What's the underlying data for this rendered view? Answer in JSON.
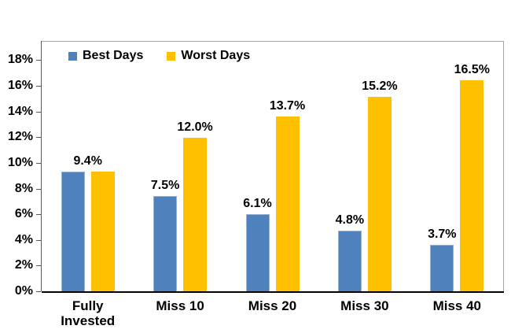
{
  "chart_data": {
    "type": "bar",
    "title": "",
    "xlabel": "",
    "ylabel": "",
    "categories": [
      "Fully Invested",
      "Miss 10",
      "Miss 20",
      "Miss 30",
      "Miss 40"
    ],
    "series": [
      {
        "name": "Best Days",
        "color": "#4F81BD",
        "border_color": "#95B3D7",
        "values": [
          9.4,
          7.5,
          6.1,
          4.8,
          3.7
        ]
      },
      {
        "name": "Worst Days",
        "color": "#FFC000",
        "border_color": "#FFC000",
        "values": [
          9.4,
          12.0,
          13.7,
          15.2,
          16.5
        ]
      }
    ],
    "data_labels": [
      {
        "text": "9.4%",
        "category": 0,
        "series": "both"
      },
      {
        "text": "7.5%",
        "category": 1,
        "series": 0
      },
      {
        "text": "12.0%",
        "category": 1,
        "series": 1
      },
      {
        "text": "6.1%",
        "category": 2,
        "series": 0
      },
      {
        "text": "13.7%",
        "category": 2,
        "series": 1
      },
      {
        "text": "4.8%",
        "category": 3,
        "series": 0
      },
      {
        "text": "15.2%",
        "category": 3,
        "series": 1
      },
      {
        "text": "3.7%",
        "category": 4,
        "series": 0
      },
      {
        "text": "16.5%",
        "category": 4,
        "series": 1
      }
    ],
    "y_ticks": [
      "0%",
      "2%",
      "4%",
      "6%",
      "8%",
      "10%",
      "12%",
      "14%",
      "16%",
      "18%"
    ],
    "ylim": [
      0,
      19.5
    ],
    "grid": false,
    "legend_position": "top-inside-left"
  },
  "colors": {
    "background": "#FFFFFF",
    "x_axis_line": "#000000",
    "y_axis_line": "#595959",
    "plot_border": "#A6A6A6",
    "text": "#000000"
  }
}
